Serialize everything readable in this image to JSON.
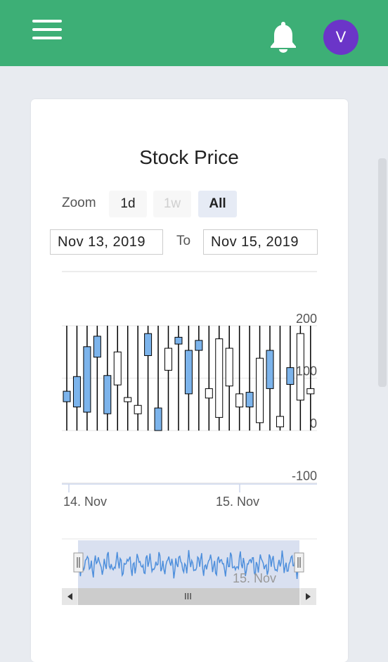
{
  "header": {
    "avatar_initial": "V"
  },
  "chart": {
    "title": "Stock Price",
    "zoom_label": "Zoom",
    "zoom_buttons": [
      "1d",
      "1w",
      "All"
    ],
    "range_from": "Nov 13, 2019",
    "range_to_label": "To",
    "range_to": "Nov 15, 2019",
    "navigator_label": "15. Nov",
    "scrollbar_grip": "III"
  },
  "chart_data": {
    "type": "candlestick",
    "title": "Stock Price",
    "y_ticks": [
      "200",
      "100",
      "0",
      "-100"
    ],
    "x_ticks": [
      "14. Nov",
      "15. Nov"
    ],
    "ylim": [
      -100,
      200
    ],
    "candles": [
      {
        "x": 0,
        "open": 55,
        "close": 75,
        "high": 200,
        "low": 0,
        "dir": "down"
      },
      {
        "x": 1,
        "open": 45,
        "close": 103,
        "high": 200,
        "low": 0,
        "dir": "down"
      },
      {
        "x": 2,
        "open": 35,
        "close": 160,
        "high": 200,
        "low": 0,
        "dir": "down"
      },
      {
        "x": 3,
        "open": 140,
        "close": 180,
        "high": 200,
        "low": 0,
        "dir": "down"
      },
      {
        "x": 4,
        "open": 32,
        "close": 105,
        "high": 200,
        "low": 0,
        "dir": "down"
      },
      {
        "x": 5,
        "open": 87,
        "close": 150,
        "high": 200,
        "low": 0,
        "dir": "up"
      },
      {
        "x": 6,
        "open": 55,
        "close": 63,
        "high": 200,
        "low": 0,
        "dir": "up"
      },
      {
        "x": 7,
        "open": 32,
        "close": 48,
        "high": 200,
        "low": 0,
        "dir": "up"
      },
      {
        "x": 8,
        "open": 143,
        "close": 185,
        "high": 200,
        "low": 0,
        "dir": "down"
      },
      {
        "x": 9,
        "open": 0,
        "close": 43,
        "high": 200,
        "low": 0,
        "dir": "down"
      },
      {
        "x": 10,
        "open": 115,
        "close": 157,
        "high": 200,
        "low": 0,
        "dir": "up"
      },
      {
        "x": 11,
        "open": 165,
        "close": 178,
        "high": 200,
        "low": 0,
        "dir": "down"
      },
      {
        "x": 12,
        "open": 70,
        "close": 153,
        "high": 200,
        "low": 0,
        "dir": "down"
      },
      {
        "x": 13,
        "open": 153,
        "close": 172,
        "high": 200,
        "low": 0,
        "dir": "down"
      },
      {
        "x": 14,
        "open": 62,
        "close": 80,
        "high": 200,
        "low": 0,
        "dir": "up"
      },
      {
        "x": 15,
        "open": 25,
        "close": 175,
        "high": 200,
        "low": 0,
        "dir": "up"
      },
      {
        "x": 16,
        "open": 85,
        "close": 157,
        "high": 200,
        "low": 0,
        "dir": "up"
      },
      {
        "x": 17,
        "open": 45,
        "close": 70,
        "high": 200,
        "low": 0,
        "dir": "up"
      },
      {
        "x": 18,
        "open": 45,
        "close": 73,
        "high": 200,
        "low": 0,
        "dir": "down"
      },
      {
        "x": 19,
        "open": 15,
        "close": 138,
        "high": 200,
        "low": 0,
        "dir": "up"
      },
      {
        "x": 20,
        "open": 80,
        "close": 153,
        "high": 200,
        "low": 0,
        "dir": "down"
      },
      {
        "x": 21,
        "open": 7,
        "close": 27,
        "high": 200,
        "low": 0,
        "dir": "up"
      },
      {
        "x": 22,
        "open": 88,
        "close": 120,
        "high": 200,
        "low": 0,
        "dir": "down"
      },
      {
        "x": 23,
        "open": 58,
        "close": 185,
        "high": 200,
        "low": 0,
        "dir": "up"
      },
      {
        "x": 24,
        "open": 70,
        "close": 80,
        "high": 200,
        "low": 0,
        "dir": "up"
      }
    ],
    "colors": {
      "down": "#7cb4ec",
      "up": "#ffffff",
      "line": "#000000",
      "navigator_fill": "#ccd6eb",
      "navigator_line": "#4e8fdc",
      "header": "#3daf76",
      "avatar": "#6b35c8"
    }
  }
}
